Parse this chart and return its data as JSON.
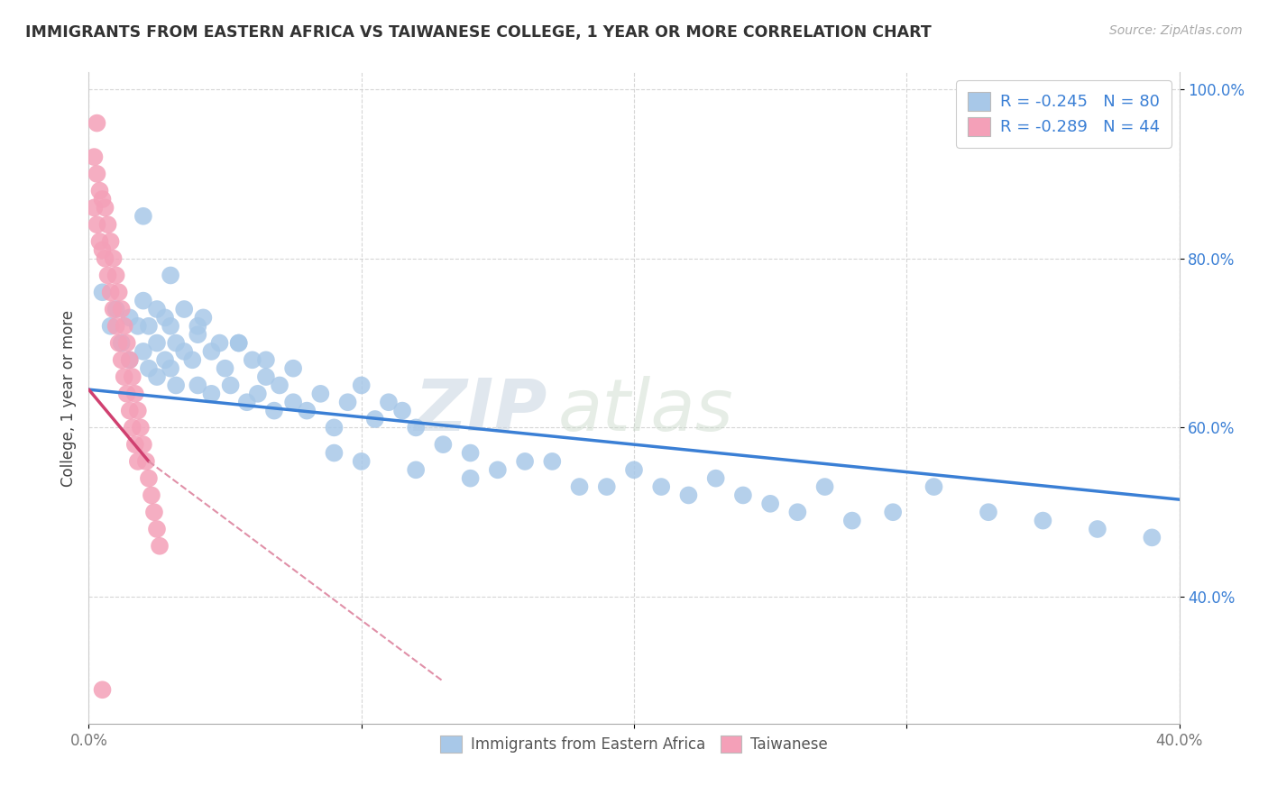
{
  "title": "IMMIGRANTS FROM EASTERN AFRICA VS TAIWANESE COLLEGE, 1 YEAR OR MORE CORRELATION CHART",
  "source": "Source: ZipAtlas.com",
  "ylabel": "College, 1 year or more",
  "xlim": [
    0.0,
    0.4
  ],
  "ylim": [
    0.25,
    1.02
  ],
  "x_ticks": [
    0.0,
    0.1,
    0.2,
    0.3,
    0.4
  ],
  "x_tick_labels": [
    "0.0%",
    "",
    "",
    "",
    "40.0%"
  ],
  "y_ticks": [
    0.4,
    0.6,
    0.8,
    1.0
  ],
  "y_tick_labels": [
    "40.0%",
    "60.0%",
    "80.0%",
    "100.0%"
  ],
  "legend_r1": "-0.245",
  "legend_n1": "80",
  "legend_r2": "-0.289",
  "legend_n2": "44",
  "legend_label1": "Immigrants from Eastern Africa",
  "legend_label2": "Taiwanese",
  "scatter_blue_x": [
    0.005,
    0.008,
    0.01,
    0.012,
    0.015,
    0.015,
    0.018,
    0.02,
    0.02,
    0.022,
    0.022,
    0.025,
    0.025,
    0.025,
    0.028,
    0.028,
    0.03,
    0.03,
    0.032,
    0.032,
    0.035,
    0.035,
    0.038,
    0.04,
    0.04,
    0.042,
    0.045,
    0.045,
    0.048,
    0.05,
    0.052,
    0.055,
    0.058,
    0.06,
    0.062,
    0.065,
    0.068,
    0.07,
    0.075,
    0.08,
    0.085,
    0.09,
    0.095,
    0.1,
    0.105,
    0.11,
    0.115,
    0.12,
    0.13,
    0.14,
    0.15,
    0.16,
    0.17,
    0.18,
    0.19,
    0.2,
    0.21,
    0.22,
    0.23,
    0.24,
    0.25,
    0.26,
    0.27,
    0.28,
    0.295,
    0.31,
    0.33,
    0.35,
    0.37,
    0.39,
    0.02,
    0.03,
    0.04,
    0.055,
    0.065,
    0.075,
    0.09,
    0.1,
    0.12,
    0.14
  ],
  "scatter_blue_y": [
    0.76,
    0.72,
    0.74,
    0.7,
    0.73,
    0.68,
    0.72,
    0.75,
    0.69,
    0.72,
    0.67,
    0.74,
    0.7,
    0.66,
    0.68,
    0.73,
    0.72,
    0.67,
    0.7,
    0.65,
    0.69,
    0.74,
    0.68,
    0.71,
    0.65,
    0.73,
    0.69,
    0.64,
    0.7,
    0.67,
    0.65,
    0.7,
    0.63,
    0.68,
    0.64,
    0.68,
    0.62,
    0.65,
    0.67,
    0.62,
    0.64,
    0.6,
    0.63,
    0.65,
    0.61,
    0.63,
    0.62,
    0.6,
    0.58,
    0.57,
    0.55,
    0.56,
    0.56,
    0.53,
    0.53,
    0.55,
    0.53,
    0.52,
    0.54,
    0.52,
    0.51,
    0.5,
    0.53,
    0.49,
    0.5,
    0.53,
    0.5,
    0.49,
    0.48,
    0.47,
    0.85,
    0.78,
    0.72,
    0.7,
    0.66,
    0.63,
    0.57,
    0.56,
    0.55,
    0.54
  ],
  "scatter_pink_x": [
    0.002,
    0.002,
    0.003,
    0.003,
    0.004,
    0.004,
    0.005,
    0.005,
    0.006,
    0.006,
    0.007,
    0.007,
    0.008,
    0.008,
    0.009,
    0.009,
    0.01,
    0.01,
    0.011,
    0.011,
    0.012,
    0.012,
    0.013,
    0.013,
    0.014,
    0.014,
    0.015,
    0.015,
    0.016,
    0.016,
    0.017,
    0.017,
    0.018,
    0.018,
    0.019,
    0.02,
    0.021,
    0.022,
    0.023,
    0.024,
    0.025,
    0.026,
    0.003,
    0.005
  ],
  "scatter_pink_y": [
    0.92,
    0.86,
    0.9,
    0.84,
    0.88,
    0.82,
    0.87,
    0.81,
    0.86,
    0.8,
    0.84,
    0.78,
    0.82,
    0.76,
    0.8,
    0.74,
    0.78,
    0.72,
    0.76,
    0.7,
    0.74,
    0.68,
    0.72,
    0.66,
    0.7,
    0.64,
    0.68,
    0.62,
    0.66,
    0.6,
    0.64,
    0.58,
    0.62,
    0.56,
    0.6,
    0.58,
    0.56,
    0.54,
    0.52,
    0.5,
    0.48,
    0.46,
    0.96,
    0.29
  ],
  "blue_line_x": [
    0.0,
    0.4
  ],
  "blue_line_y": [
    0.645,
    0.515
  ],
  "pink_solid_line_x": [
    0.0,
    0.022
  ],
  "pink_solid_line_y": [
    0.645,
    0.56
  ],
  "pink_dash_line_x": [
    0.022,
    0.13
  ],
  "pink_dash_line_y": [
    0.56,
    0.3
  ],
  "watermark_zip": "ZIP",
  "watermark_atlas": "atlas",
  "color_blue_scatter": "#a8c8e8",
  "color_blue_line": "#3a7fd5",
  "color_pink_scatter": "#f4a0b8",
  "color_pink_solid_line": "#d04070",
  "color_pink_dash_line": "#e090a8",
  "color_blue_legend_box": "#a8c8e8",
  "color_pink_legend_box": "#f4a0b8",
  "color_legend_text": "#3a7fd5",
  "color_ytick": "#3a7fd5",
  "color_xtick": "#777777",
  "background_color": "#ffffff",
  "grid_color": "#cccccc",
  "title_color": "#333333",
  "source_color": "#aaaaaa"
}
